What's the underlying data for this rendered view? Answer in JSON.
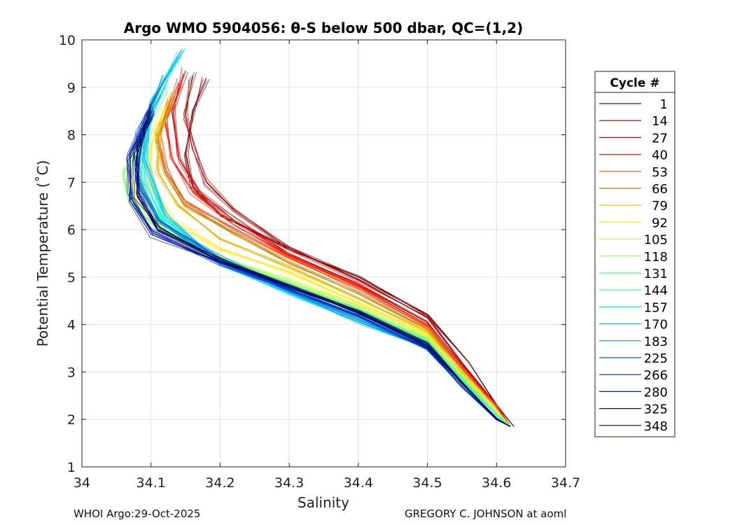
{
  "chart_data": {
    "type": "line",
    "title": "Argo WMO 5904056: θ-S below 500 dbar,  QC=(1,2)",
    "xlabel": "Salinity",
    "ylabel": "Potential Temperature (˚C)",
    "xlim": [
      34.0,
      34.7
    ],
    "ylim": [
      1,
      10
    ],
    "xticks": [
      "34",
      "34.1",
      "34.2",
      "34.3",
      "34.4",
      "34.5",
      "34.6",
      "34.7"
    ],
    "yticks": [
      "1",
      "2",
      "3",
      "4",
      "5",
      "6",
      "7",
      "8",
      "9",
      "10"
    ],
    "grid": true,
    "legend": {
      "title": "Cycle #",
      "placement": "right-outside",
      "entries": [
        {
          "label": "1",
          "color": "#800000"
        },
        {
          "label": "14",
          "color": "#b00000"
        },
        {
          "label": "27",
          "color": "#e00000"
        },
        {
          "label": "40",
          "color": "#ff1a00"
        },
        {
          "label": "53",
          "color": "#ff4a00"
        },
        {
          "label": "66",
          "color": "#c88000"
        },
        {
          "label": "79",
          "color": "#e6b800"
        },
        {
          "label": "92",
          "color": "#ffee00"
        },
        {
          "label": "105",
          "color": "#ccff33"
        },
        {
          "label": "118",
          "color": "#88ff55"
        },
        {
          "label": "131",
          "color": "#44ff88"
        },
        {
          "label": "144",
          "color": "#22ffb0"
        },
        {
          "label": "157",
          "color": "#00f0e8"
        },
        {
          "label": "170",
          "color": "#00c8f0"
        },
        {
          "label": "183",
          "color": "#0090e0"
        },
        {
          "label": "225",
          "color": "#0060d0"
        },
        {
          "label": "266",
          "color": "#0030c0"
        },
        {
          "label": "280",
          "color": "#0010a0"
        },
        {
          "label": "325",
          "color": "#000a80"
        },
        {
          "label": "348",
          "color": "#000060"
        }
      ]
    },
    "series": [
      {
        "name": "1",
        "color": "#800000",
        "x": [
          34.18,
          34.16,
          34.15,
          34.16,
          34.2,
          34.3,
          34.4,
          34.5,
          34.56,
          34.6,
          34.625
        ],
        "y": [
          9.2,
          8.5,
          7.6,
          6.9,
          6.3,
          5.6,
          5.0,
          4.2,
          3.2,
          2.3,
          1.85
        ]
      },
      {
        "name": "14",
        "color": "#b00000",
        "x": [
          34.16,
          34.15,
          34.16,
          34.18,
          34.22,
          34.3,
          34.4,
          34.5,
          34.55,
          34.6,
          34.62
        ],
        "y": [
          9.25,
          8.4,
          7.7,
          7.0,
          6.4,
          5.6,
          4.95,
          4.15,
          3.2,
          2.3,
          1.85
        ]
      },
      {
        "name": "27",
        "color": "#e00000",
        "x": [
          34.15,
          34.13,
          34.14,
          34.17,
          34.22,
          34.3,
          34.4,
          34.5,
          34.55,
          34.6,
          34.62
        ],
        "y": [
          9.35,
          8.5,
          7.5,
          6.8,
          6.2,
          5.5,
          4.85,
          4.05,
          3.15,
          2.3,
          1.85
        ]
      },
      {
        "name": "40",
        "color": "#ff1a00",
        "x": [
          34.14,
          34.12,
          34.13,
          34.16,
          34.22,
          34.3,
          34.4,
          34.5,
          34.55,
          34.6,
          34.62
        ],
        "y": [
          9.1,
          8.3,
          7.5,
          6.8,
          6.1,
          5.45,
          4.8,
          4.0,
          3.1,
          2.3,
          1.85
        ]
      },
      {
        "name": "53",
        "color": "#ff4a00",
        "x": [
          34.13,
          34.11,
          34.12,
          34.15,
          34.22,
          34.3,
          34.4,
          34.5,
          34.55,
          34.6,
          34.62
        ],
        "y": [
          8.8,
          8.0,
          7.3,
          6.6,
          6.0,
          5.4,
          4.75,
          3.95,
          3.1,
          2.25,
          1.85
        ]
      },
      {
        "name": "66",
        "color": "#c88000",
        "x": [
          34.13,
          34.11,
          34.12,
          34.15,
          34.22,
          34.3,
          34.4,
          34.5,
          34.55,
          34.6,
          34.62
        ],
        "y": [
          8.7,
          7.9,
          7.2,
          6.5,
          5.9,
          5.3,
          4.65,
          3.9,
          3.05,
          2.25,
          1.85
        ]
      },
      {
        "name": "79",
        "color": "#e6b800",
        "x": [
          34.13,
          34.11,
          34.11,
          34.14,
          34.2,
          34.3,
          34.4,
          34.5,
          34.55,
          34.6,
          34.62
        ],
        "y": [
          8.9,
          8.0,
          7.2,
          6.5,
          5.8,
          5.2,
          4.55,
          3.85,
          3.0,
          2.2,
          1.85
        ]
      },
      {
        "name": "92",
        "color": "#ffee00",
        "x": [
          34.12,
          34.1,
          34.1,
          34.13,
          34.2,
          34.3,
          34.4,
          34.5,
          34.55,
          34.6,
          34.62
        ],
        "y": [
          8.6,
          7.8,
          7.0,
          6.2,
          5.6,
          5.1,
          4.45,
          3.8,
          2.95,
          2.2,
          1.85
        ]
      },
      {
        "name": "105",
        "color": "#ccff33",
        "x": [
          34.1,
          34.07,
          34.08,
          34.12,
          34.2,
          34.3,
          34.4,
          34.5,
          34.55,
          34.6,
          34.62
        ],
        "y": [
          8.3,
          7.4,
          6.6,
          6.0,
          5.4,
          4.95,
          4.4,
          3.75,
          2.95,
          2.15,
          1.85
        ]
      },
      {
        "name": "118",
        "color": "#88ff55",
        "x": [
          34.09,
          34.06,
          34.07,
          34.11,
          34.2,
          34.3,
          34.4,
          34.5,
          34.55,
          34.6,
          34.62
        ],
        "y": [
          7.8,
          7.2,
          6.6,
          6.0,
          5.3,
          4.9,
          4.35,
          3.7,
          2.9,
          2.15,
          1.85
        ]
      },
      {
        "name": "131",
        "color": "#44ff88",
        "x": [
          34.1,
          34.08,
          34.09,
          34.12,
          34.2,
          34.3,
          34.4,
          34.5,
          34.55,
          34.6,
          34.62
        ],
        "y": [
          8.6,
          7.7,
          6.8,
          6.1,
          5.4,
          4.85,
          4.3,
          3.65,
          2.85,
          2.1,
          1.85
        ]
      },
      {
        "name": "144",
        "color": "#22ffb0",
        "x": [
          34.12,
          34.09,
          34.09,
          34.12,
          34.2,
          34.3,
          34.4,
          34.5,
          34.55,
          34.6,
          34.62
        ],
        "y": [
          9.0,
          8.0,
          7.0,
          6.1,
          5.35,
          4.8,
          4.25,
          3.6,
          2.8,
          2.1,
          1.85
        ]
      },
      {
        "name": "157",
        "color": "#00f0e8",
        "x": [
          34.14,
          34.1,
          34.09,
          34.12,
          34.2,
          34.3,
          34.4,
          34.5,
          34.55,
          34.6,
          34.62
        ],
        "y": [
          9.7,
          8.6,
          7.4,
          6.2,
          5.3,
          4.7,
          4.15,
          3.55,
          2.75,
          2.05,
          1.85
        ]
      },
      {
        "name": "170",
        "color": "#00c8f0",
        "x": [
          34.145,
          34.1,
          34.09,
          34.12,
          34.2,
          34.3,
          34.4,
          34.5,
          34.55,
          34.6,
          34.62
        ],
        "y": [
          9.8,
          8.7,
          7.5,
          6.3,
          5.3,
          4.65,
          4.05,
          3.5,
          2.7,
          2.0,
          1.85
        ]
      },
      {
        "name": "183",
        "color": "#0090e0",
        "x": [
          34.12,
          34.09,
          34.08,
          34.11,
          34.2,
          34.3,
          34.4,
          34.5,
          34.55,
          34.6,
          34.62
        ],
        "y": [
          9.2,
          8.2,
          7.1,
          6.2,
          5.3,
          4.7,
          4.1,
          3.5,
          2.7,
          2.0,
          1.85
        ]
      },
      {
        "name": "225",
        "color": "#0060d0",
        "x": [
          34.11,
          34.08,
          34.08,
          34.11,
          34.2,
          34.3,
          34.4,
          34.5,
          34.55,
          34.6,
          34.62
        ],
        "y": [
          8.9,
          8.0,
          7.0,
          6.2,
          5.4,
          4.75,
          4.15,
          3.5,
          2.7,
          2.0,
          1.85
        ]
      },
      {
        "name": "266",
        "color": "#0030c0",
        "x": [
          34.1,
          34.07,
          34.07,
          34.1,
          34.2,
          34.3,
          34.4,
          34.5,
          34.55,
          34.6,
          34.62
        ],
        "y": [
          8.5,
          7.6,
          6.7,
          6.0,
          5.3,
          4.75,
          4.2,
          3.5,
          2.7,
          2.0,
          1.85
        ]
      },
      {
        "name": "280",
        "color": "#0010a0",
        "x": [
          34.1,
          34.07,
          34.07,
          34.1,
          34.2,
          34.3,
          34.4,
          34.5,
          34.55,
          34.6,
          34.62
        ],
        "y": [
          8.4,
          7.5,
          6.6,
          5.9,
          5.3,
          4.8,
          4.25,
          3.55,
          2.75,
          2.0,
          1.85
        ]
      },
      {
        "name": "325",
        "color": "#000a80",
        "x": [
          34.1,
          34.08,
          34.08,
          34.11,
          34.2,
          34.3,
          34.4,
          34.5,
          34.55,
          34.6,
          34.62
        ],
        "y": [
          8.6,
          7.7,
          6.8,
          6.0,
          5.35,
          4.8,
          4.25,
          3.55,
          2.75,
          2.0,
          1.85
        ]
      },
      {
        "name": "348",
        "color": "#000060",
        "x": [
          34.1,
          34.08,
          34.08,
          34.11,
          34.2,
          34.3,
          34.4,
          34.5,
          34.55,
          34.6,
          34.62
        ],
        "y": [
          8.5,
          7.6,
          6.7,
          6.0,
          5.35,
          4.82,
          4.28,
          3.6,
          2.78,
          2.02,
          1.85
        ]
      }
    ]
  },
  "footer": {
    "left": "WHOI Argo:29-Oct-2025",
    "right": "GREGORY C. JOHNSON at aoml"
  }
}
